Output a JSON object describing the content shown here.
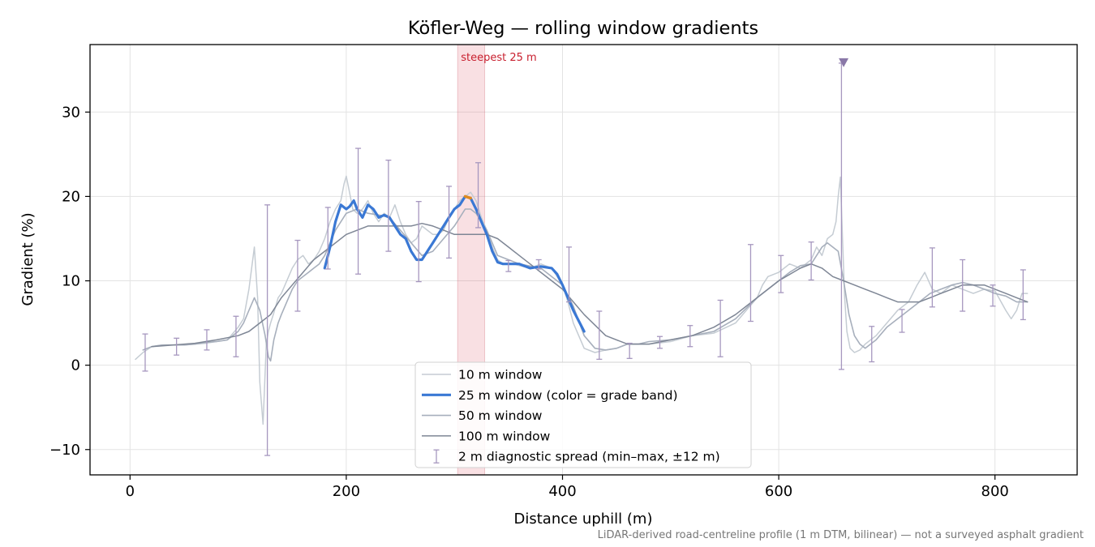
{
  "chart_data": {
    "type": "line",
    "title": "Köfler-Weg — rolling window gradients",
    "xlabel": "Distance uphill (m)",
    "ylabel": "Gradient (%)",
    "xlim": [
      -37,
      876
    ],
    "ylim": [
      -13,
      38
    ],
    "xticks": [
      0,
      200,
      400,
      600,
      800
    ],
    "yticks": [
      -10,
      0,
      10,
      20,
      30
    ],
    "x_tick_labels": [
      "0",
      "200",
      "400",
      "600",
      "800"
    ],
    "y_tick_labels": [
      "−10",
      "0",
      "10",
      "20",
      "30"
    ],
    "grid": true,
    "legend_position": "lower-center",
    "footnote": "LiDAR-derived road-centreline profile (1 m DTM, bilinear) — not a surveyed asphalt gradient",
    "annotation": {
      "text": "steepest 25 m",
      "x_start": 303,
      "x_end": 328,
      "color": "#c8202f"
    },
    "peak_marker": {
      "x": 660,
      "y": 35.8,
      "color": "#8a78a8"
    },
    "series": [
      {
        "name": "10 m window",
        "color": "#c5ccd3",
        "x": [
          5,
          12,
          20,
          30,
          50,
          70,
          90,
          100,
          105,
          110,
          115,
          118,
          120,
          123,
          126,
          128,
          130,
          133,
          137,
          140,
          145,
          150,
          155,
          160,
          165,
          170,
          175,
          180,
          185,
          190,
          195,
          198,
          200,
          203,
          206,
          210,
          215,
          220,
          225,
          230,
          235,
          240,
          245,
          250,
          255,
          260,
          265,
          270,
          275,
          280,
          285,
          290,
          295,
          300,
          305,
          310,
          315,
          320,
          325,
          330,
          335,
          340,
          345,
          350,
          355,
          360,
          370,
          380,
          390,
          400,
          405,
          410,
          420,
          430,
          440,
          450,
          460,
          480,
          500,
          520,
          540,
          560,
          570,
          580,
          585,
          590,
          600,
          610,
          620,
          630,
          635,
          640,
          645,
          650,
          653,
          655,
          657,
          659,
          661,
          663,
          666,
          670,
          675,
          680,
          690,
          700,
          710,
          720,
          728,
          735,
          742,
          750,
          760,
          770,
          780,
          790,
          800,
          810,
          815,
          820,
          825,
          830
        ],
        "y": [
          0.7,
          1.5,
          2.2,
          2.4,
          2.4,
          2.6,
          3.0,
          4.5,
          5.5,
          9.0,
          14.0,
          8.0,
          -2.0,
          -7.0,
          2.5,
          4.0,
          5.0,
          6.2,
          8.0,
          8.5,
          10.0,
          11.5,
          12.5,
          13.0,
          12.0,
          12.5,
          13.5,
          15.0,
          17.0,
          18.5,
          19.5,
          21.5,
          22.4,
          20.5,
          18.5,
          18.0,
          18.5,
          19.5,
          18.0,
          17.0,
          18.0,
          17.5,
          19.0,
          17.0,
          15.5,
          14.5,
          15.0,
          16.5,
          16.0,
          15.5,
          15.5,
          16.0,
          17.5,
          18.5,
          19.5,
          20.0,
          20.5,
          19.5,
          17.5,
          16.0,
          14.0,
          12.5,
          12.0,
          12.0,
          12.0,
          11.8,
          11.5,
          12.0,
          11.5,
          9.5,
          7.5,
          5.0,
          2.0,
          1.5,
          1.8,
          2.0,
          2.5,
          2.5,
          2.8,
          3.5,
          3.8,
          5.0,
          6.5,
          8.0,
          9.5,
          10.5,
          11.0,
          12.0,
          11.5,
          12.5,
          14.0,
          13.0,
          15.0,
          15.5,
          17.0,
          20.0,
          22.3,
          15.0,
          8.0,
          4.0,
          2.0,
          1.5,
          1.8,
          2.5,
          3.5,
          5.0,
          6.5,
          7.5,
          9.5,
          11.0,
          9.0,
          8.5,
          9.5,
          9.0,
          8.5,
          9.0,
          8.8,
          6.5,
          5.5,
          6.5,
          8.5,
          8.5
        ]
      },
      {
        "name": "25 m window (color = grade band)",
        "color": "#3a78d4",
        "x": [
          180,
          185,
          190,
          195,
          200,
          203,
          207,
          210,
          215,
          220,
          225,
          230,
          235,
          240,
          245,
          250,
          255,
          260,
          265,
          270,
          275,
          280,
          285,
          290,
          295,
          300,
          305,
          310,
          315,
          320,
          325,
          330,
          335,
          340,
          345,
          350,
          360,
          370,
          380,
          390,
          395,
          400,
          405,
          410,
          420
        ],
        "y": [
          11.5,
          14.0,
          17.0,
          19.0,
          18.5,
          18.8,
          19.5,
          18.5,
          17.5,
          19.0,
          18.5,
          17.5,
          17.8,
          17.5,
          16.5,
          15.5,
          15.0,
          13.5,
          12.5,
          12.5,
          13.5,
          14.5,
          15.5,
          16.5,
          17.5,
          18.5,
          19.0,
          20.0,
          19.8,
          18.5,
          17.0,
          15.5,
          13.5,
          12.2,
          12.0,
          12.0,
          12.0,
          11.5,
          11.7,
          11.5,
          10.8,
          9.5,
          8.0,
          6.5,
          4.0
        ]
      },
      {
        "name": "50 m window",
        "color": "#a7afbc",
        "x": [
          12,
          20,
          30,
          40,
          50,
          60,
          70,
          80,
          90,
          100,
          105,
          110,
          115,
          120,
          125,
          128,
          130,
          133,
          137,
          140,
          145,
          150,
          155,
          160,
          165,
          170,
          175,
          180,
          190,
          200,
          210,
          220,
          230,
          240,
          250,
          260,
          270,
          280,
          290,
          300,
          305,
          310,
          315,
          320,
          330,
          340,
          350,
          360,
          380,
          400,
          410,
          420,
          430,
          440,
          450,
          460,
          470,
          480,
          500,
          520,
          540,
          560,
          580,
          600,
          610,
          620,
          630,
          640,
          645,
          650,
          655,
          660,
          665,
          670,
          675,
          680,
          690,
          700,
          710,
          720,
          730,
          740,
          750,
          760,
          770,
          780,
          790,
          800,
          810,
          820,
          830
        ],
        "y": [
          1.8,
          2.2,
          2.4,
          2.4,
          2.4,
          2.5,
          2.7,
          2.8,
          3.0,
          4.0,
          5.0,
          6.5,
          8.0,
          6.5,
          3.5,
          1.0,
          0.5,
          3.0,
          5.0,
          6.0,
          7.5,
          9.0,
          10.0,
          10.5,
          11.0,
          11.5,
          12.0,
          13.0,
          16.0,
          18.0,
          18.5,
          18.0,
          17.8,
          17.5,
          16.0,
          14.5,
          13.0,
          13.5,
          15.0,
          16.5,
          17.5,
          18.5,
          18.5,
          18.0,
          16.0,
          13.0,
          12.5,
          12.0,
          11.5,
          9.5,
          7.0,
          3.5,
          2.0,
          1.8,
          2.0,
          2.5,
          2.5,
          2.8,
          3.0,
          3.5,
          4.0,
          5.5,
          8.0,
          10.0,
          11.0,
          11.8,
          12.0,
          14.0,
          14.5,
          14.0,
          13.5,
          10.0,
          6.0,
          3.5,
          2.5,
          2.0,
          3.0,
          4.5,
          5.5,
          6.5,
          7.5,
          8.5,
          9.0,
          9.5,
          9.8,
          9.5,
          9.0,
          8.5,
          8.2,
          7.5,
          7.5
        ]
      },
      {
        "name": "100 m window",
        "color": "#7e8695",
        "x": [
          20,
          40,
          60,
          80,
          100,
          110,
          120,
          130,
          140,
          150,
          160,
          170,
          180,
          200,
          220,
          240,
          260,
          270,
          280,
          290,
          300,
          310,
          320,
          330,
          340,
          350,
          360,
          370,
          380,
          390,
          400,
          420,
          440,
          460,
          480,
          500,
          520,
          540,
          560,
          580,
          600,
          620,
          630,
          640,
          650,
          660,
          670,
          680,
          690,
          700,
          710,
          720,
          730,
          740,
          750,
          760,
          770,
          780,
          790,
          800,
          810,
          820,
          830
        ],
        "y": [
          2.2,
          2.4,
          2.6,
          3.0,
          3.5,
          4.0,
          5.0,
          6.0,
          8.0,
          9.5,
          11.0,
          12.5,
          13.5,
          15.5,
          16.5,
          16.5,
          16.5,
          16.8,
          16.5,
          16.0,
          15.5,
          15.5,
          15.5,
          15.5,
          15.0,
          14.0,
          13.0,
          12.0,
          11.0,
          10.0,
          9.0,
          6.0,
          3.5,
          2.5,
          2.5,
          3.0,
          3.5,
          4.5,
          6.0,
          8.0,
          10.0,
          11.5,
          12.0,
          11.5,
          10.5,
          10.0,
          9.5,
          9.0,
          8.5,
          8.0,
          7.5,
          7.5,
          7.5,
          8.0,
          8.5,
          9.0,
          9.5,
          9.5,
          9.5,
          9.0,
          8.5,
          8.0,
          7.5
        ]
      }
    ],
    "errorbars": {
      "name": "2 m diagnostic spread (min–max, ±12 m)",
      "color": "#a697bf",
      "points": [
        {
          "x": 14,
          "lo": -0.7,
          "hi": 3.7
        },
        {
          "x": 43,
          "lo": 1.2,
          "hi": 3.2
        },
        {
          "x": 71,
          "lo": 1.8,
          "hi": 4.2
        },
        {
          "x": 98,
          "lo": 1.0,
          "hi": 5.8
        },
        {
          "x": 127,
          "lo": -10.7,
          "hi": 19.0
        },
        {
          "x": 155,
          "lo": 6.4,
          "hi": 14.8
        },
        {
          "x": 183,
          "lo": 11.4,
          "hi": 18.7
        },
        {
          "x": 211,
          "lo": 10.8,
          "hi": 25.7
        },
        {
          "x": 239,
          "lo": 13.5,
          "hi": 24.3
        },
        {
          "x": 267,
          "lo": 9.9,
          "hi": 19.4
        },
        {
          "x": 295,
          "lo": 12.7,
          "hi": 21.2
        },
        {
          "x": 322,
          "lo": 16.3,
          "hi": 24.0
        },
        {
          "x": 350,
          "lo": 11.1,
          "hi": 12.4
        },
        {
          "x": 378,
          "lo": 11.4,
          "hi": 12.5
        },
        {
          "x": 406,
          "lo": 7.5,
          "hi": 14.0
        },
        {
          "x": 434,
          "lo": 0.7,
          "hi": 6.4
        },
        {
          "x": 462,
          "lo": 0.8,
          "hi": 2.6
        },
        {
          "x": 490,
          "lo": 2.0,
          "hi": 3.4
        },
        {
          "x": 518,
          "lo": 2.2,
          "hi": 4.7
        },
        {
          "x": 546,
          "lo": 1.0,
          "hi": 7.7
        },
        {
          "x": 574,
          "lo": 5.2,
          "hi": 14.3
        },
        {
          "x": 602,
          "lo": 8.6,
          "hi": 13.0
        },
        {
          "x": 630,
          "lo": 10.1,
          "hi": 14.6
        },
        {
          "x": 658,
          "lo": -0.5,
          "hi": 35.8
        },
        {
          "x": 686,
          "lo": 0.4,
          "hi": 4.6
        },
        {
          "x": 714,
          "lo": 3.9,
          "hi": 6.6
        },
        {
          "x": 742,
          "lo": 6.9,
          "hi": 13.9
        },
        {
          "x": 770,
          "lo": 6.4,
          "hi": 12.5
        },
        {
          "x": 798,
          "lo": 7.0,
          "hi": 9.5
        },
        {
          "x": 826,
          "lo": 5.4,
          "hi": 11.3
        }
      ]
    }
  }
}
